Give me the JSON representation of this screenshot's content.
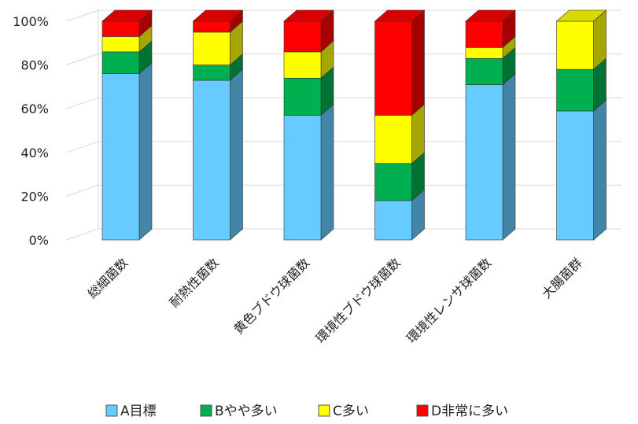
{
  "chart_data": {
    "type": "bar",
    "stacked": true,
    "three_d": true,
    "categories": [
      "総細菌数",
      "耐熱性菌数",
      "黄色ブドウ球菌数",
      "環境性ブドウ球菌数",
      "環境性レンサ球菌数",
      "大腸菌群"
    ],
    "series": [
      {
        "name": "A目標",
        "color": "#66CCFF",
        "values": [
          76,
          73,
          57,
          18,
          71,
          59
        ]
      },
      {
        "name": "Bやや多い",
        "color": "#00B050",
        "values": [
          10,
          7,
          17,
          17,
          12,
          19
        ]
      },
      {
        "name": "C多い",
        "color": "#FFFF00",
        "values": [
          7,
          15,
          12,
          22,
          5,
          22
        ]
      },
      {
        "name": "D非常に多い",
        "color": "#FF0000",
        "values": [
          7,
          5,
          14,
          43,
          12,
          0
        ]
      }
    ],
    "y_ticks": [
      "0%",
      "20%",
      "40%",
      "60%",
      "80%",
      "100%"
    ],
    "ylim": [
      0,
      100
    ],
    "grid": true,
    "legend": "bottom"
  }
}
